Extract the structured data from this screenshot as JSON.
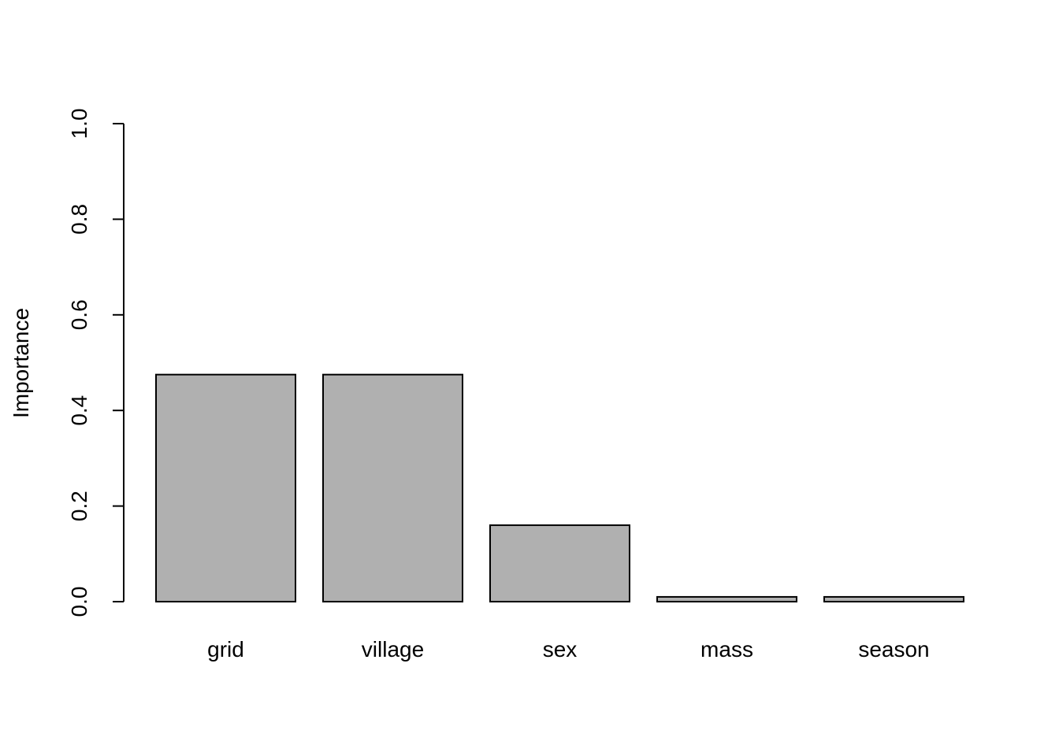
{
  "chart_data": {
    "type": "bar",
    "categories": [
      "grid",
      "village",
      "sex",
      "mass",
      "season"
    ],
    "values": [
      0.475,
      0.475,
      0.16,
      0.01,
      0.01
    ],
    "title": "",
    "xlabel": "",
    "ylabel": "Importance",
    "ylim": [
      0,
      1
    ],
    "yticks": [
      "0.0",
      "0.2",
      "0.4",
      "0.6",
      "0.8",
      "1.0"
    ],
    "ytick_values": [
      0,
      0.2,
      0.4,
      0.6,
      0.8,
      1.0
    ],
    "grid": false,
    "legend": "none",
    "colors": {
      "bar_fill": "#b0b0b0",
      "bar_stroke": "#000000",
      "axis": "#000000"
    }
  }
}
